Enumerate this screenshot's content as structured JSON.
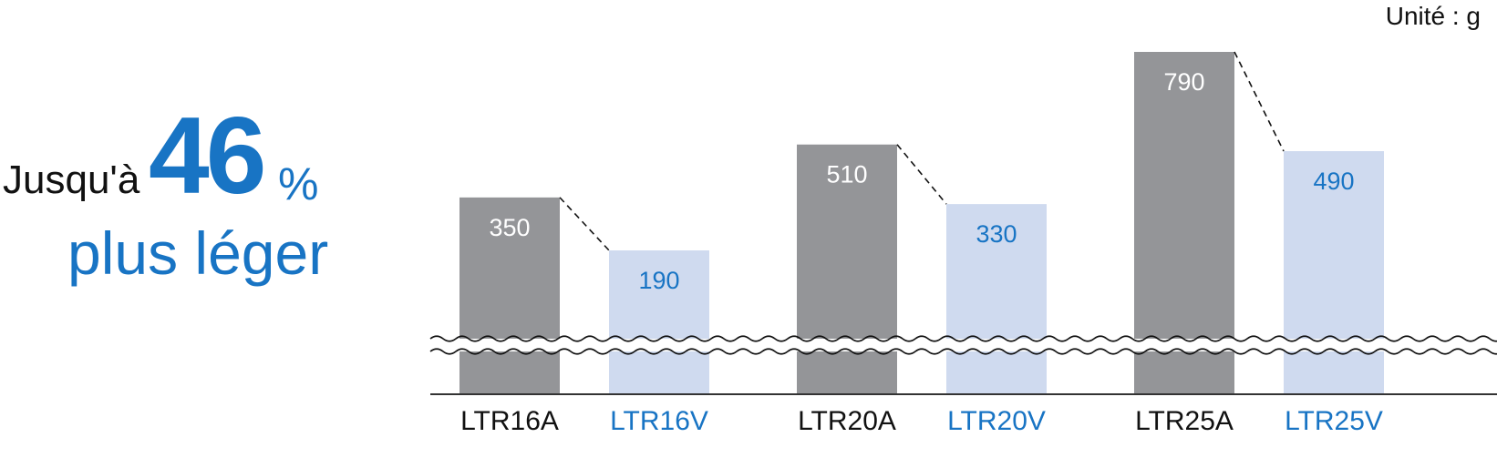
{
  "headline": {
    "prefix": "Jusqu'à",
    "number": "46",
    "percent": "%",
    "line2": "plus léger"
  },
  "unit_label": "Unité : g",
  "colors": {
    "dark_bar": "#949598",
    "light_bar": "#cfdaef",
    "blue_text": "#1874c4",
    "dark_text": "#111111"
  },
  "chart_data": {
    "type": "bar",
    "axis_broken": true,
    "categories": [
      "LTR16A",
      "LTR16V",
      "LTR20A",
      "LTR20V",
      "LTR25A",
      "LTR25V"
    ],
    "values": [
      350,
      190,
      510,
      330,
      790,
      490
    ],
    "pairs": [
      {
        "old": "LTR16A",
        "new": "LTR16V"
      },
      {
        "old": "LTR20A",
        "new": "LTR20V"
      },
      {
        "old": "LTR25A",
        "new": "LTR25V"
      }
    ],
    "title": "",
    "xlabel": "",
    "ylabel": "",
    "grid": false,
    "legend": "none"
  }
}
